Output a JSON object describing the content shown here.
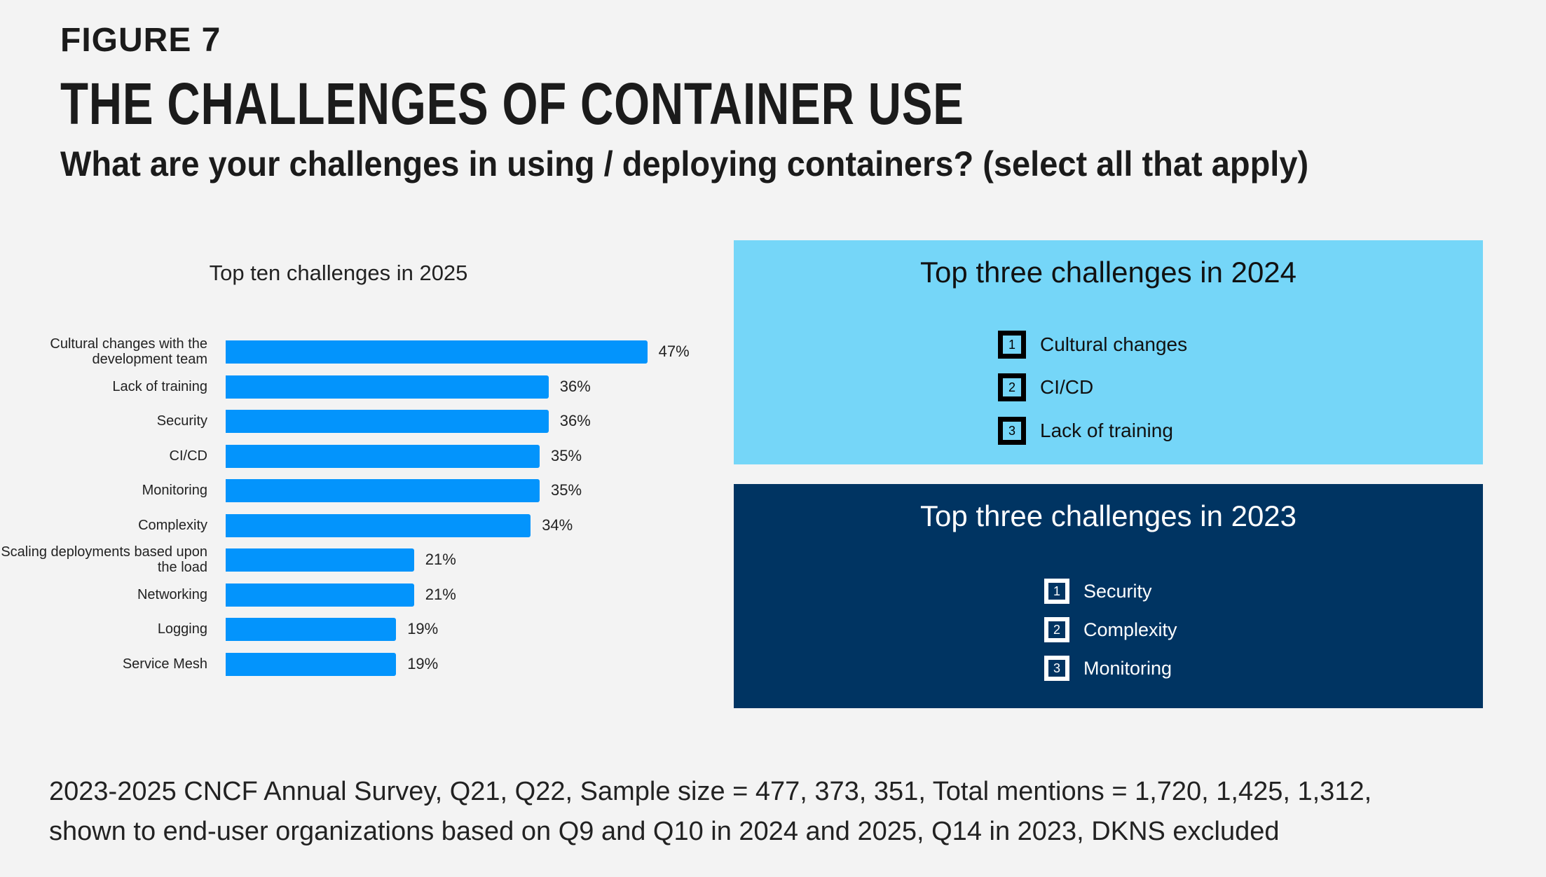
{
  "header": {
    "figure": "FIGURE 7",
    "title": "THE CHALLENGES OF CONTAINER USE",
    "subtitle": "What are your challenges in using / deploying containers? (select all that apply)"
  },
  "chart_data": {
    "type": "bar",
    "orientation": "horizontal",
    "title": "Top ten challenges in 2025",
    "categories": [
      "Cultural changes with the development team",
      "Lack of training",
      "Security",
      "CI/CD",
      "Monitoring",
      "Complexity",
      "Scaling deployments based upon the load",
      "Networking",
      "Logging",
      "Service Mesh"
    ],
    "values": [
      47,
      36,
      36,
      35,
      35,
      34,
      21,
      21,
      19,
      19
    ],
    "value_labels": [
      "47%",
      "36%",
      "36%",
      "35%",
      "35%",
      "34%",
      "21%",
      "21%",
      "19%",
      "19%"
    ],
    "unit": "%",
    "color": "#0394fc",
    "grid": false
  },
  "panel_2024": {
    "title": "Top three challenges in 2024",
    "color": "#75d6f8",
    "items": [
      {
        "rank": "1",
        "label": "Cultural changes"
      },
      {
        "rank": "2",
        "label": "CI/CD"
      },
      {
        "rank": "3",
        "label": "Lack of training"
      }
    ]
  },
  "panel_2023": {
    "title": "Top three challenges in 2023",
    "color": "#003462",
    "items": [
      {
        "rank": "1",
        "label": "Security"
      },
      {
        "rank": "2",
        "label": "Complexity"
      },
      {
        "rank": "3",
        "label": "Monitoring"
      }
    ]
  },
  "footnote": {
    "line1": "2023-2025 CNCF Annual Survey, Q21, Q22, Sample size = 477, 373, 351, Total mentions = 1,720, 1,425, 1,312,",
    "line2": "shown to end-user organizations based on Q9 and Q10 in 2024 and 2025, Q14 in 2023, DKNS excluded"
  }
}
